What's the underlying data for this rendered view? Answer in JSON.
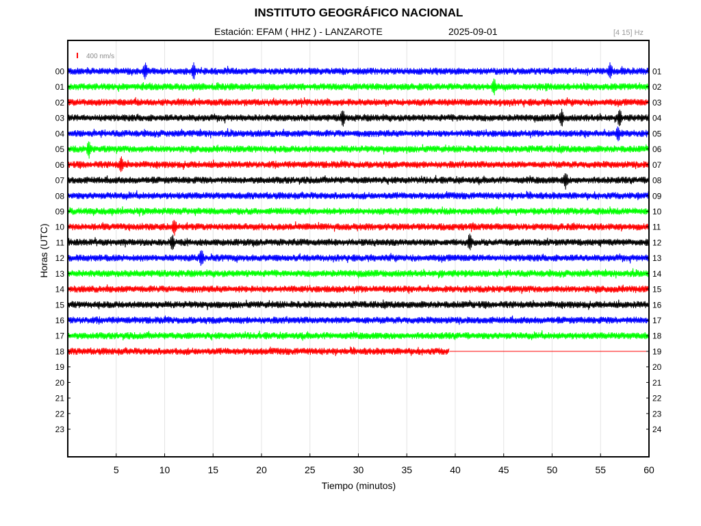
{
  "header": {
    "title": "INSTITUTO GEOGRÁFICO NACIONAL",
    "subtitle": "Estación:  EFAM ( HHZ ) - LANZAROTE",
    "date": "2025-09-01",
    "band": "[4 15] Hz"
  },
  "scale_label": "400 nm/s",
  "chart_data": {
    "type": "line",
    "title": "INSTITUTO GEOGRÁFICO NACIONAL",
    "xlabel": "Tiempo (minutos)",
    "ylabel": "Horas (UTC)",
    "xlim": [
      0,
      60
    ],
    "x_ticks": [
      "5",
      "10",
      "15",
      "20",
      "25",
      "30",
      "35",
      "40",
      "45",
      "50",
      "55",
      "60"
    ],
    "x_tick_values": [
      5,
      10,
      15,
      20,
      25,
      30,
      35,
      40,
      45,
      50,
      55,
      60
    ],
    "left_hour_labels": [
      "00",
      "01",
      "02",
      "03",
      "04",
      "05",
      "06",
      "07",
      "08",
      "09",
      "10",
      "11",
      "12",
      "13",
      "14",
      "15",
      "16",
      "17",
      "18",
      "19",
      "20",
      "21",
      "22",
      "23"
    ],
    "right_hour_labels": [
      "01",
      "02",
      "03",
      "04",
      "05",
      "06",
      "07",
      "08",
      "09",
      "10",
      "11",
      "12",
      "13",
      "14",
      "15",
      "16",
      "17",
      "18",
      "19",
      "20",
      "21",
      "22",
      "23",
      "24"
    ],
    "trace_colors": [
      "#0000ff",
      "#00ff00",
      "#ff0000",
      "#000000"
    ],
    "grid": true,
    "series": [
      {
        "hour": 0,
        "end_min": 60,
        "events_min": [
          8,
          13,
          56
        ]
      },
      {
        "hour": 1,
        "end_min": 60,
        "events_min": [
          44
        ]
      },
      {
        "hour": 2,
        "end_min": 60,
        "events_min": []
      },
      {
        "hour": 3,
        "end_min": 60,
        "events_min": [
          28.4,
          51,
          57
        ]
      },
      {
        "hour": 4,
        "end_min": 60,
        "events_min": [
          56.8
        ]
      },
      {
        "hour": 5,
        "end_min": 60,
        "events_min": [
          2.2
        ]
      },
      {
        "hour": 6,
        "end_min": 60,
        "events_min": [
          5.5
        ]
      },
      {
        "hour": 7,
        "end_min": 60,
        "events_min": [
          51.4
        ]
      },
      {
        "hour": 8,
        "end_min": 60,
        "events_min": []
      },
      {
        "hour": 9,
        "end_min": 60,
        "events_min": []
      },
      {
        "hour": 10,
        "end_min": 60,
        "events_min": [
          11
        ]
      },
      {
        "hour": 11,
        "end_min": 60,
        "events_min": [
          10.8,
          41.5
        ]
      },
      {
        "hour": 12,
        "end_min": 60,
        "events_min": [
          13.8
        ]
      },
      {
        "hour": 13,
        "end_min": 60,
        "events_min": []
      },
      {
        "hour": 14,
        "end_min": 60,
        "events_min": []
      },
      {
        "hour": 15,
        "end_min": 60,
        "events_min": []
      },
      {
        "hour": 16,
        "end_min": 60,
        "events_min": []
      },
      {
        "hour": 17,
        "end_min": 60,
        "events_min": []
      },
      {
        "hour": 18,
        "end_min": 39.4,
        "events_min": []
      }
    ]
  }
}
